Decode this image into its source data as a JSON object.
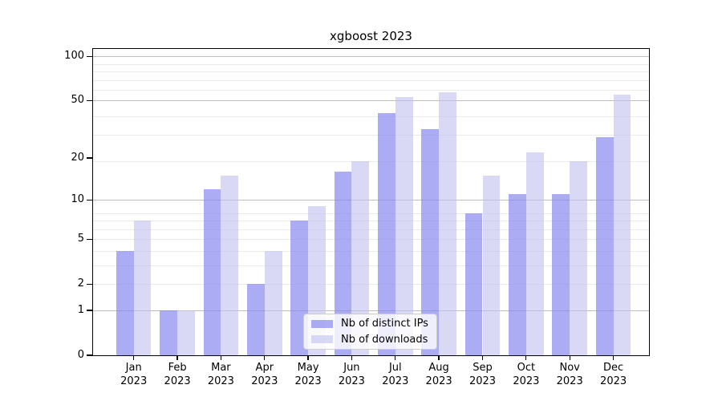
{
  "chart_data": {
    "type": "bar",
    "title": "xgboost 2023",
    "categories": [
      "Jan",
      "Feb",
      "Mar",
      "Apr",
      "May",
      "Jun",
      "Jul",
      "Aug",
      "Sep",
      "Oct",
      "Nov",
      "Dec"
    ],
    "x_tick_sublabel": "2023",
    "series": [
      {
        "name": "Nb of distinct IPs",
        "color": "rgba(137,137,240,0.7)",
        "values": [
          4,
          1,
          12,
          2,
          7,
          16,
          41,
          32,
          8,
          11,
          11,
          28
        ]
      },
      {
        "name": "Nb of downloads",
        "color": "rgba(191,191,240,0.6)",
        "values": [
          7,
          1,
          15,
          4,
          9,
          19,
          53,
          57,
          15,
          22,
          19,
          55
        ]
      }
    ],
    "y_axis": {
      "scale": "log10(value+1)",
      "tick_labels": [
        "100",
        "50",
        "20",
        "10",
        "5",
        "2",
        "1",
        "0"
      ],
      "tick_values": [
        100,
        50,
        20,
        10,
        5,
        2,
        1,
        0
      ],
      "major_gridline_values": [
        1,
        10,
        50,
        100
      ],
      "minor_gridline_values": [
        2,
        3,
        4,
        5,
        6,
        7,
        8,
        19,
        29,
        39,
        59,
        69,
        79,
        89
      ],
      "ylim": [
        0,
        115
      ]
    },
    "legend": {
      "position": "lower center"
    },
    "grid": true
  },
  "colors": {
    "bar_distinct_ips": "rgba(137,137,240,0.7)",
    "bar_downloads": "rgba(191,191,240,0.6)",
    "major_gridline": "#bdbdbd",
    "minor_gridline": "#eaeaea",
    "axis": "#000000",
    "background": "#ffffff"
  }
}
